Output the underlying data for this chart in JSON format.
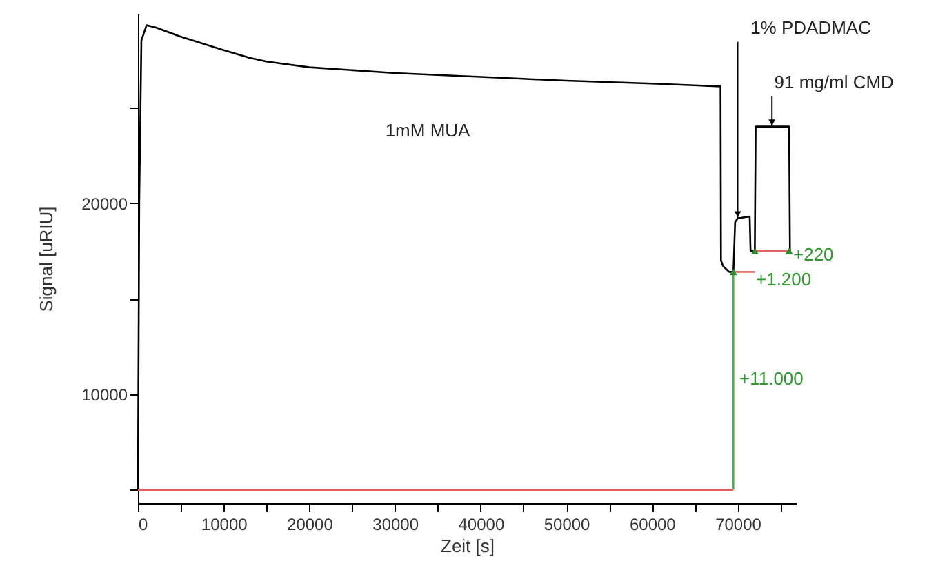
{
  "chart_data": {
    "type": "line",
    "xlabel": "Zeit [s]",
    "ylabel": "Signal [uRIU]",
    "xlim": [
      0,
      76800
    ],
    "ylim": [
      4300,
      29900
    ],
    "xticks": [
      0,
      {
        "value": 5000,
        "label": null
      },
      10000,
      {
        "value": 15000,
        "label": null
      },
      20000,
      {
        "value": 25000,
        "label": null
      },
      30000,
      {
        "value": 35000,
        "label": null
      },
      40000,
      {
        "value": 45000,
        "label": null
      },
      50000,
      {
        "value": 55000,
        "label": null
      },
      60000,
      {
        "value": 65000,
        "label": null
      },
      70000,
      {
        "value": 75000,
        "label": null
      }
    ],
    "yticks": [
      {
        "value": 5000,
        "label": null
      },
      10000,
      {
        "value": 15000,
        "label": null
      },
      20000,
      {
        "value": 25000,
        "label": null
      }
    ],
    "grid": false,
    "series": [
      {
        "color": "#000000",
        "x": [
          0,
          150,
          400,
          1000,
          2000,
          5000,
          10000,
          13000,
          15000,
          20000,
          30000,
          40000,
          50000,
          60000,
          68000,
          68050,
          68300,
          69000,
          69500,
          69700,
          70000,
          71400,
          71500,
          72000,
          72100,
          76000,
          76100
        ],
        "values": [
          5000,
          20000,
          28500,
          29300,
          29200,
          28700,
          28000,
          27600,
          27400,
          27100,
          26800,
          26600,
          26400,
          26250,
          26100,
          17000,
          16700,
          16400,
          16400,
          19000,
          19200,
          19300,
          17500,
          17500,
          24000,
          24000,
          17500
        ]
      },
      {
        "color": "#e06060",
        "x": [
          0,
          69500
        ],
        "values": [
          5000,
          5000
        ]
      },
      {
        "color": "#e06060",
        "x": [
          69500,
          72000
        ],
        "values": [
          16400,
          16400
        ]
      },
      {
        "color": "#e06060",
        "x": [
          72000,
          76000
        ],
        "values": [
          17500,
          17500
        ]
      },
      {
        "color": "#4caf50",
        "x": [
          69500,
          69500
        ],
        "values": [
          5000,
          16400
        ]
      },
      {
        "type": "scatter",
        "marker": "triangle",
        "color": "#2e8b2e",
        "x": [
          69500,
          72000,
          76000
        ],
        "values": [
          16400,
          17500,
          17500
        ]
      }
    ],
    "annotations": [
      "1mM MUA",
      {
        "text": "1% PDADMAC",
        "x": 70000,
        "y": 19200
      },
      {
        "text": "91 mg/ml CMD",
        "x": 74000,
        "y": 24000
      },
      "+11.000",
      "+1.200",
      "+220"
    ]
  }
}
